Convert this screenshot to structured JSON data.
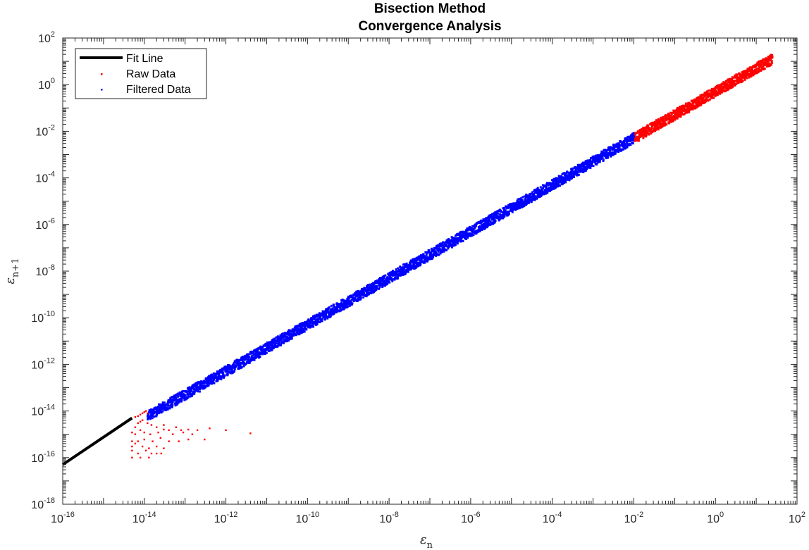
{
  "chart_data": {
    "type": "scatter",
    "title": [
      "Bisection Method",
      "Convergence Analysis"
    ],
    "xlabel": "ε",
    "xlabel_sub": "n",
    "ylabel": "ε",
    "ylabel_sub": "n+1",
    "x_scale": "log",
    "y_scale": "log",
    "xlim": [
      1e-16,
      100
    ],
    "ylim": [
      1e-18,
      100
    ],
    "x_tick_exponents": [
      -16,
      -14,
      -12,
      -10,
      -8,
      -6,
      -4,
      -2,
      0,
      2
    ],
    "y_tick_exponents": [
      -18,
      -16,
      -14,
      -12,
      -10,
      -8,
      -6,
      -4,
      -2,
      0,
      2
    ],
    "tick_base": "10",
    "grid": false,
    "legend_position": "top-left",
    "series": [
      {
        "name": "Fit Line",
        "style": "line",
        "color": "#000000",
        "x": [
          1e-16,
          5e-15
        ],
        "y": [
          5e-17,
          5e-15
        ]
      },
      {
        "name": "Raw Data",
        "style": "points",
        "color": "#ff0000",
        "x": [
          5e-15,
          6e-15,
          7e-15,
          8e-15,
          9e-15,
          1.2e-14,
          1.5e-14,
          2e-14,
          3e-14,
          4e-14,
          6e-14,
          8e-14,
          1.2e-13,
          2e-13,
          4e-13,
          1e-12,
          4e-12,
          6e-15,
          8e-15,
          1e-14,
          1.4e-14,
          2.2e-14,
          3e-14,
          5e-14,
          9e-14,
          1.5e-13,
          3e-13,
          5e-15,
          7e-15,
          1e-14,
          1.6e-14,
          2.5e-14,
          4e-14,
          7e-14,
          1.2e-13,
          5e-15,
          6e-15,
          9e-15,
          1.3e-14,
          2e-14,
          3e-14,
          5e-15,
          7e-15,
          1.1e-14,
          1.5e-14,
          2e-14,
          2.6e-14,
          5e-15,
          8e-15,
          1.3e-14,
          6e-15,
          7e-15,
          8e-15,
          9e-15,
          1e-14,
          1.1e-14,
          1.2e-14,
          1.4e-14
        ],
        "y": [
          1.2e-15,
          2e-15,
          3e-15,
          3.5e-15,
          4e-15,
          3e-15,
          2.5e-15,
          2e-15,
          2.5e-15,
          1.5e-15,
          2e-15,
          1.5e-15,
          1.6e-15,
          1.5e-15,
          1.8e-15,
          1.5e-15,
          1.1e-15,
          1e-15,
          1.5e-15,
          1.2e-15,
          1e-15,
          1.2e-15,
          1.6e-15,
          1e-15,
          1.2e-15,
          1e-15,
          6e-16,
          5e-16,
          5e-16,
          6e-16,
          5e-16,
          7e-16,
          5e-16,
          5e-16,
          6e-16,
          3e-16,
          4e-16,
          3e-16,
          2.5e-16,
          3e-16,
          2.5e-16,
          2e-16,
          1.5e-16,
          2e-16,
          1.5e-16,
          1.5e-16,
          1.5e-16,
          1e-16,
          1e-16,
          1e-16,
          5.5e-15,
          6e-15,
          7e-15,
          8e-15,
          9e-15,
          1e-14,
          8e-15,
          9e-15
        ],
        "band": {
          "x_from": 0.01,
          "x_to": 25,
          "slope": 0.5
        }
      },
      {
        "name": "Filtered Data",
        "style": "points",
        "color": "#0000ff",
        "band": {
          "x_from": 1.2e-14,
          "x_to": 0.01,
          "slope": 0.5
        }
      }
    ]
  }
}
